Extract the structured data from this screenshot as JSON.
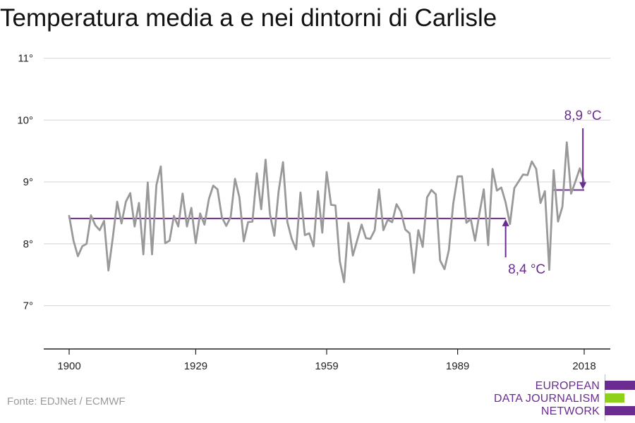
{
  "title": "Temperatura media a e nei dintorni di Carlisle",
  "source": "Fonte: EDJNet / ECMWF",
  "logo": {
    "lines": [
      "EUROPEAN",
      "DATA JOURNALISM",
      "NETWORK"
    ],
    "colors": [
      "#6b2c91",
      "#8fd11a",
      "#6b2c91"
    ]
  },
  "chart_data": {
    "type": "line",
    "xlim": [
      1900,
      2019
    ],
    "ylim": [
      6.3,
      11.2
    ],
    "yticks": [
      {
        "value": 7,
        "label": "7°"
      },
      {
        "value": 8,
        "label": "8°"
      },
      {
        "value": 9,
        "label": "9°"
      },
      {
        "value": 10,
        "label": "10°"
      },
      {
        "value": 11,
        "label": "11°"
      }
    ],
    "xticks": [
      {
        "value": 1900,
        "label": "1900"
      },
      {
        "value": 1929,
        "label": "1929"
      },
      {
        "value": 1959,
        "label": "1959"
      },
      {
        "value": 1989,
        "label": "1989"
      },
      {
        "value": 2018,
        "label": "2018"
      }
    ],
    "grid": true,
    "colors": {
      "series": "#999999",
      "reference": "#6b2c91",
      "grid": "#d9d9d9",
      "axis": "#222222"
    },
    "series": [
      {
        "x": [
          1900,
          1901,
          1902,
          1903,
          1904,
          1905,
          1906,
          1907,
          1908,
          1909,
          1910,
          1911,
          1912,
          1913,
          1914,
          1915,
          1916,
          1917,
          1918,
          1919,
          1920,
          1921,
          1922,
          1923,
          1924,
          1925,
          1926,
          1927,
          1928,
          1929,
          1930,
          1931,
          1932,
          1933,
          1934,
          1935,
          1936,
          1937,
          1938,
          1939,
          1940,
          1941,
          1942,
          1943,
          1944,
          1945,
          1946,
          1947,
          1948,
          1949,
          1950,
          1951,
          1952,
          1953,
          1954,
          1955,
          1956,
          1957,
          1958,
          1959,
          1960,
          1961,
          1962,
          1963,
          1964,
          1965,
          1966,
          1967,
          1968,
          1969,
          1970,
          1971,
          1972,
          1973,
          1974,
          1975,
          1976,
          1977,
          1978,
          1979,
          1980,
          1981,
          1982,
          1983,
          1984,
          1985,
          1986,
          1987,
          1988,
          1989,
          1990,
          1991,
          1992,
          1993,
          1994,
          1995,
          1996,
          1997,
          1998,
          1999,
          2000,
          2001,
          2002,
          2003,
          2004,
          2005,
          2006,
          2007,
          2008,
          2009,
          2010,
          2011,
          2012,
          2013,
          2014,
          2015,
          2016,
          2017,
          2018
        ],
        "values": [
          8.45,
          8.05,
          7.8,
          7.96,
          8.0,
          8.46,
          8.3,
          8.22,
          8.37,
          7.57,
          8.1,
          8.68,
          8.33,
          8.68,
          8.82,
          8.28,
          8.66,
          7.83,
          8.99,
          7.83,
          8.95,
          9.25,
          8.01,
          8.05,
          8.45,
          8.28,
          8.81,
          8.28,
          8.58,
          8.01,
          8.49,
          8.31,
          8.72,
          8.94,
          8.88,
          8.43,
          8.29,
          8.43,
          9.05,
          8.75,
          8.04,
          8.35,
          8.36,
          9.14,
          8.56,
          9.36,
          8.48,
          8.13,
          8.85,
          9.32,
          8.35,
          8.08,
          7.91,
          8.83,
          8.14,
          8.17,
          7.96,
          8.85,
          8.18,
          9.16,
          8.63,
          8.62,
          7.72,
          7.38,
          8.34,
          7.81,
          8.06,
          8.31,
          8.09,
          8.08,
          8.22,
          8.88,
          8.22,
          8.39,
          8.35,
          8.64,
          8.52,
          8.23,
          8.17,
          7.53,
          8.22,
          7.95,
          8.75,
          8.87,
          8.8,
          7.73,
          7.59,
          7.9,
          8.65,
          9.09,
          9.09,
          8.34,
          8.4,
          8.05,
          8.49,
          8.88,
          7.98,
          9.21,
          8.86,
          8.91,
          8.67,
          8.32,
          8.9,
          9.01,
          9.12,
          9.11,
          9.33,
          9.21,
          8.66,
          8.85,
          7.58,
          9.19,
          8.36,
          8.6,
          9.64,
          8.81,
          9.01,
          9.22,
          9.0
        ]
      }
    ],
    "reference_lines": [
      {
        "label": "8,4 °C",
        "value": 8.41,
        "from": 1900,
        "to": 2000
      },
      {
        "label": "8,9 °C",
        "value": 8.87,
        "from": 2011,
        "to": 2018
      }
    ]
  }
}
